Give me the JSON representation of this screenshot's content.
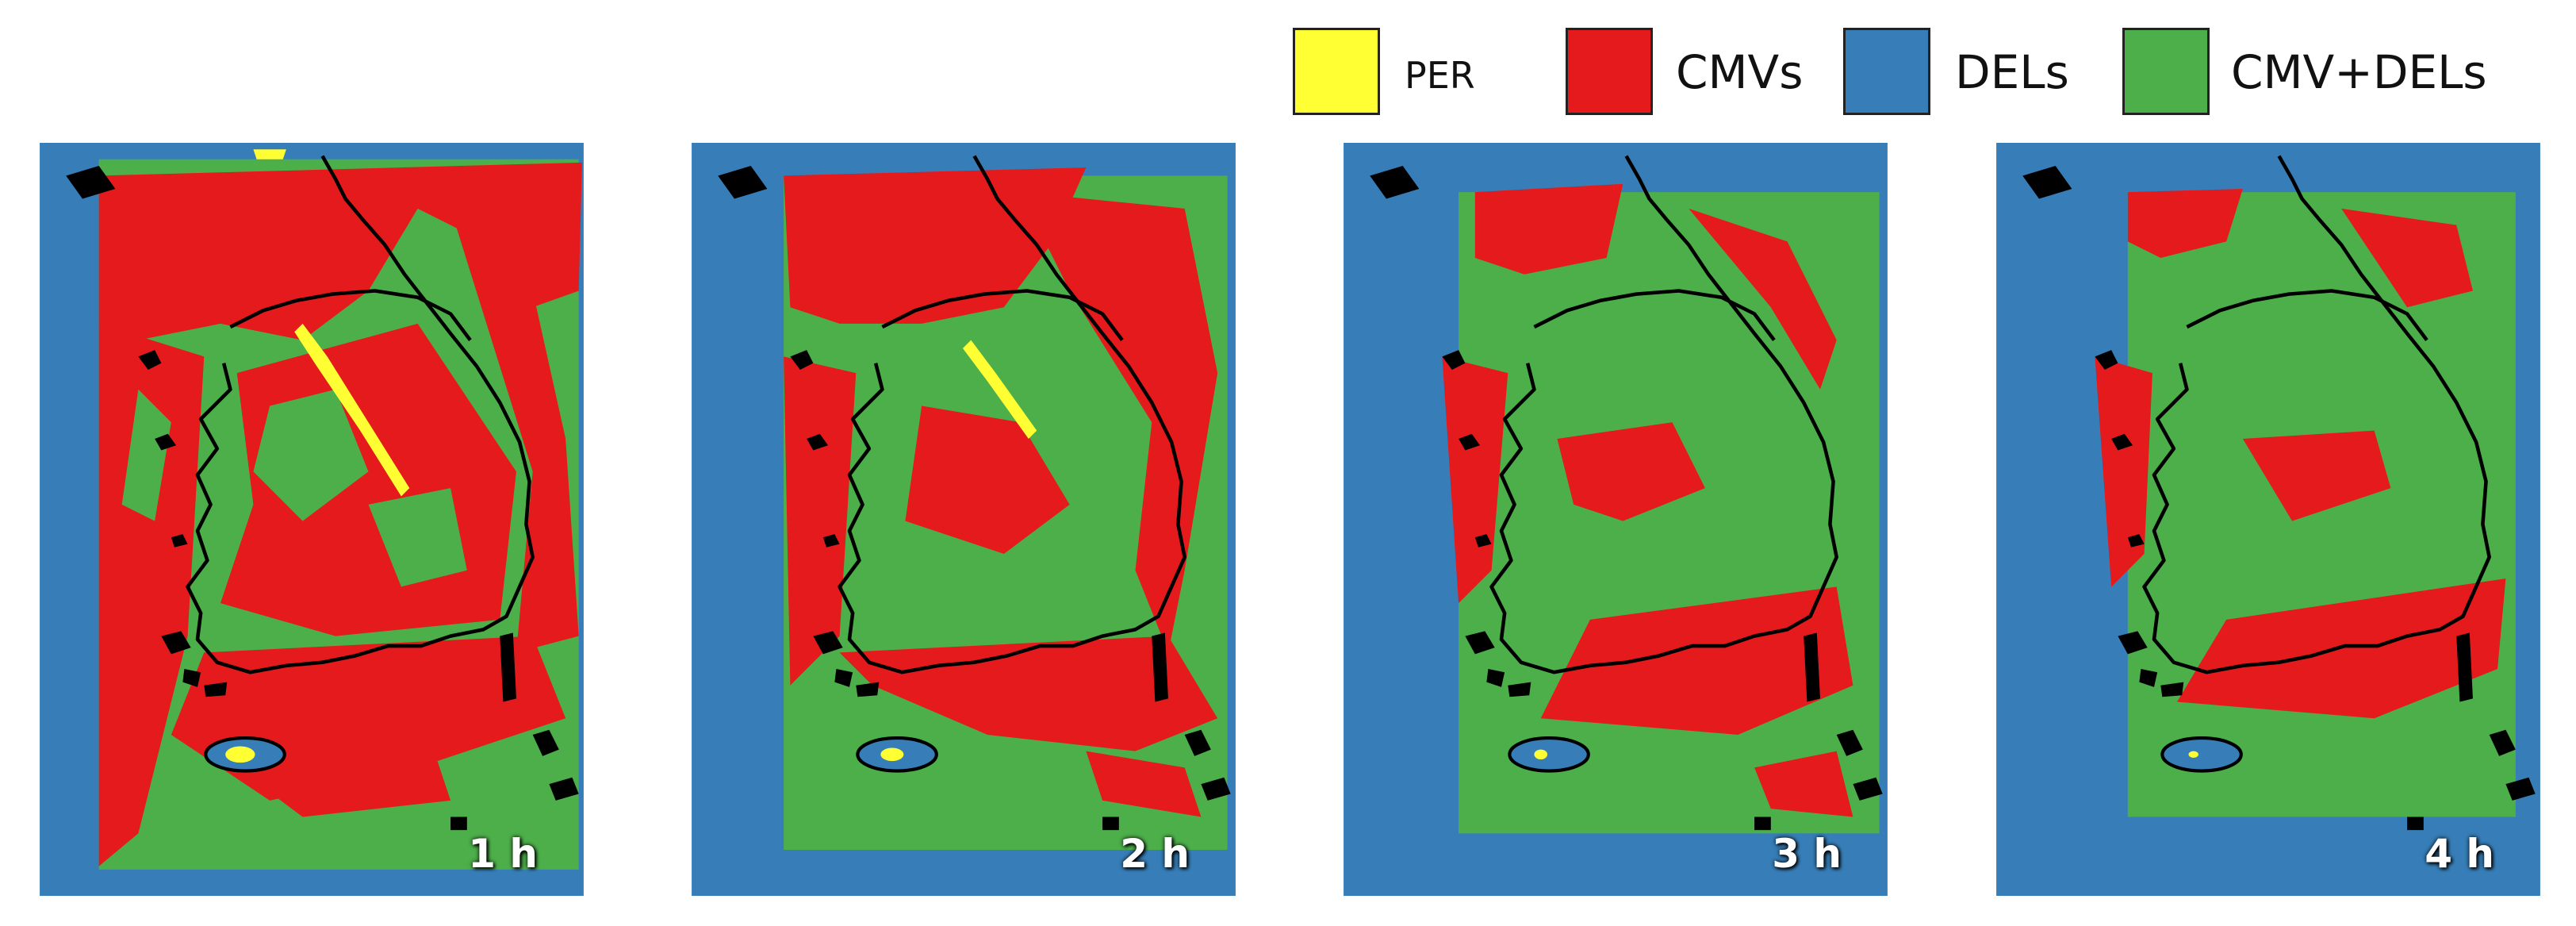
{
  "legend": [
    {
      "label": "PER",
      "color": "#ffff33"
    },
    {
      "label": "CMVs",
      "color": "#e41a1c"
    },
    {
      "label": "DELs",
      "color": "#377eb8"
    },
    {
      "label": "CMV+DELs",
      "color": "#4daf4a"
    }
  ],
  "panels": [
    {
      "label": "1 h"
    },
    {
      "label": "2 h"
    },
    {
      "label": "3 h"
    },
    {
      "label": "4 h"
    }
  ]
}
